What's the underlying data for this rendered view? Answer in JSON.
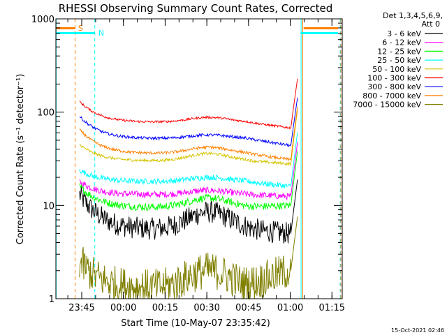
{
  "chart_data": {
    "type": "line",
    "title": "RHESSI Observing Summary Count Rates, Corrected",
    "xlabel": "Start Time (10-May-07 23:35:42)",
    "ylabel": "Corrected Count Rate (s⁻¹ detector⁻¹)",
    "y_scale": "log",
    "ylim": [
      1,
      1000
    ],
    "y_ticks": [
      {
        "value": 1,
        "label": "1"
      },
      {
        "value": 10,
        "label": "10"
      },
      {
        "value": 100,
        "label": "100"
      },
      {
        "value": 1000,
        "label": "1000"
      }
    ],
    "xlim_minutes_since_start": [
      0,
      103
    ],
    "x_ticks": [
      {
        "label": "23:45",
        "minute": 9.3
      },
      {
        "label": "00:00",
        "minute": 24.3
      },
      {
        "label": "00:15",
        "minute": 39.3
      },
      {
        "label": "00:30",
        "minute": 54.3
      },
      {
        "label": "00:45",
        "minute": 69.3
      },
      {
        "label": "01:00",
        "minute": 84.3
      },
      {
        "label": "01:15",
        "minute": 99.3
      }
    ],
    "legend": {
      "header": [
        "Det 1,3,4,5,6,9,",
        "Att 0"
      ],
      "placement": "right"
    },
    "annotations": [
      {
        "label": "S",
        "color": "#ff8000"
      },
      {
        "label": "N",
        "color": "#00ffff"
      }
    ],
    "series": [
      {
        "name": "3 - 6 keV",
        "color": "#000000",
        "start": 13,
        "mid": 5.5,
        "hump": 8.5,
        "end": 5,
        "noise": 0.12
      },
      {
        "name": "6 - 12 keV",
        "color": "#ff00ff",
        "start": 18,
        "mid": 13,
        "hump": 14.5,
        "end": 12.5,
        "noise": 0.035
      },
      {
        "name": "12 - 25 keV",
        "color": "#00ff00",
        "start": 16,
        "mid": 9.5,
        "hump": 12,
        "end": 10,
        "noise": 0.04
      },
      {
        "name": "25 - 50 keV",
        "color": "#00ffff",
        "start": 24,
        "mid": 18,
        "hump": 20,
        "end": 16,
        "noise": 0.03
      },
      {
        "name": "50 - 100 keV",
        "color": "#d4c400",
        "start": 45,
        "mid": 30,
        "hump": 36,
        "end": 28,
        "noise": 0.015
      },
      {
        "name": "100 - 300 keV",
        "color": "#ff0000",
        "start": 130,
        "mid": 78,
        "hump": 88,
        "end": 68,
        "noise": 0.012
      },
      {
        "name": "300 - 800 keV",
        "color": "#0000ff",
        "start": 90,
        "mid": 52,
        "hump": 57,
        "end": 44,
        "noise": 0.015
      },
      {
        "name": "800 - 7000 keV",
        "color": "#ff8000",
        "start": 65,
        "mid": 36,
        "hump": 42,
        "end": 31,
        "noise": 0.015
      },
      {
        "name": "7000 - 15000 keV",
        "color": "#7f7f00",
        "start": 2.5,
        "mid": 1.3,
        "hump": 2.0,
        "end": 2.0,
        "noise": 0.2
      }
    ]
  },
  "footer": {
    "timestamp": "15-Oct-2021 02:46"
  }
}
